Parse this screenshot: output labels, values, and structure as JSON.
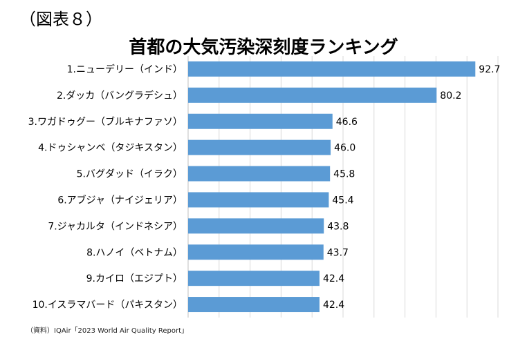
{
  "figure_label": "（図表８）",
  "source": "（資料）IQAir「2023 World Air Quality Report」",
  "colors": {
    "bar": "#5b9bd5",
    "grid": "#d9d9d9",
    "text": "#000000"
  },
  "chart_data": {
    "type": "bar",
    "orientation": "horizontal",
    "title": "首都の大気汚染深刻度ランキング",
    "xlabel": "",
    "ylabel": "",
    "xlim": [
      0,
      100
    ],
    "grid": true,
    "categories": [
      "1.ニューデリー（インド）",
      "2.ダッカ（バングラデシュ）",
      "3.ワガドゥグー（ブルキナファソ）",
      "4.ドゥシャンベ（タジキスタン）",
      "5.バグダッド（イラク）",
      "6.アブジャ（ナイジェリア）",
      "7.ジャカルタ（インドネシア）",
      "8.ハノイ（ベトナム）",
      "9.カイロ（エジプト）",
      "10.イスラマバード（パキスタン）"
    ],
    "values": [
      92.7,
      80.2,
      46.6,
      46.0,
      45.8,
      45.4,
      43.8,
      43.7,
      42.4,
      42.4
    ],
    "value_labels": [
      "92.7",
      "80.2",
      "46.6",
      "46.0",
      "45.8",
      "45.4",
      "43.8",
      "43.7",
      "42.4",
      "42.4"
    ]
  }
}
